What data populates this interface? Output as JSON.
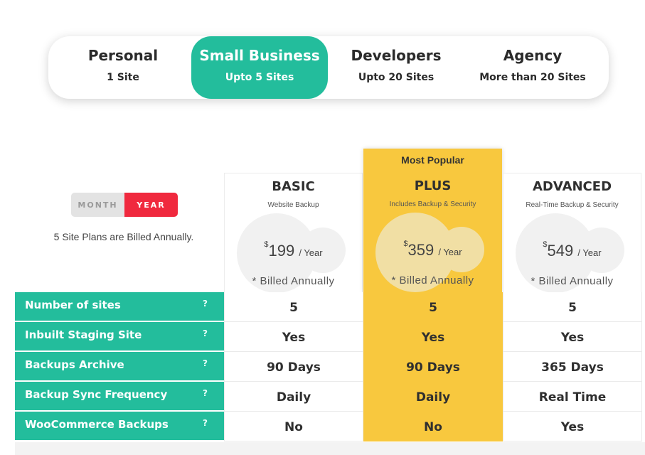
{
  "segments": [
    {
      "title": "Personal",
      "subtitle": "1 Site",
      "active": false
    },
    {
      "title": "Small Business",
      "subtitle": "Upto 5 Sites",
      "active": true
    },
    {
      "title": "Developers",
      "subtitle": "Upto 20 Sites",
      "active": false
    },
    {
      "title": "Agency",
      "subtitle": "More than 20 Sites",
      "active": false
    }
  ],
  "billing_toggle": {
    "month_label": "MONTH",
    "year_label": "YEAR",
    "selected": "YEAR"
  },
  "billing_note": "5 Site Plans are Billed Annually.",
  "popular_label": "Most Popular",
  "plans": [
    {
      "name": "BASIC",
      "subtitle": "Website Backup",
      "currency": "$",
      "price": "199",
      "period": "/ Year",
      "billed": "* Billed Annually"
    },
    {
      "name": "PLUS",
      "subtitle": "Includes Backup & Security",
      "currency": "$",
      "price": "359",
      "period": "/ Year",
      "billed": "* Billed Annually"
    },
    {
      "name": "ADVANCED",
      "subtitle": "Real-Time Backup & Security",
      "currency": "$",
      "price": "549",
      "period": "/ Year",
      "billed": "* Billed Annually"
    }
  ],
  "features": [
    {
      "label": "Number of sites",
      "help": "?",
      "values": [
        "5",
        "5",
        "5"
      ]
    },
    {
      "label": "Inbuilt Staging Site",
      "help": "?",
      "values": [
        "Yes",
        "Yes",
        "Yes"
      ]
    },
    {
      "label": "Backups Archive",
      "help": "?",
      "values": [
        "90 Days",
        "90 Days",
        "365 Days"
      ]
    },
    {
      "label": "Backup Sync Frequency",
      "help": "?",
      "values": [
        "Daily",
        "Daily",
        "Real Time"
      ]
    },
    {
      "label": "WooCommerce Backups",
      "help": "?",
      "values": [
        "No",
        "No",
        "Yes"
      ]
    }
  ],
  "colors": {
    "accent_green": "#23bd9c",
    "popular_yellow": "#f8c83e",
    "year_red": "#f0293e"
  }
}
